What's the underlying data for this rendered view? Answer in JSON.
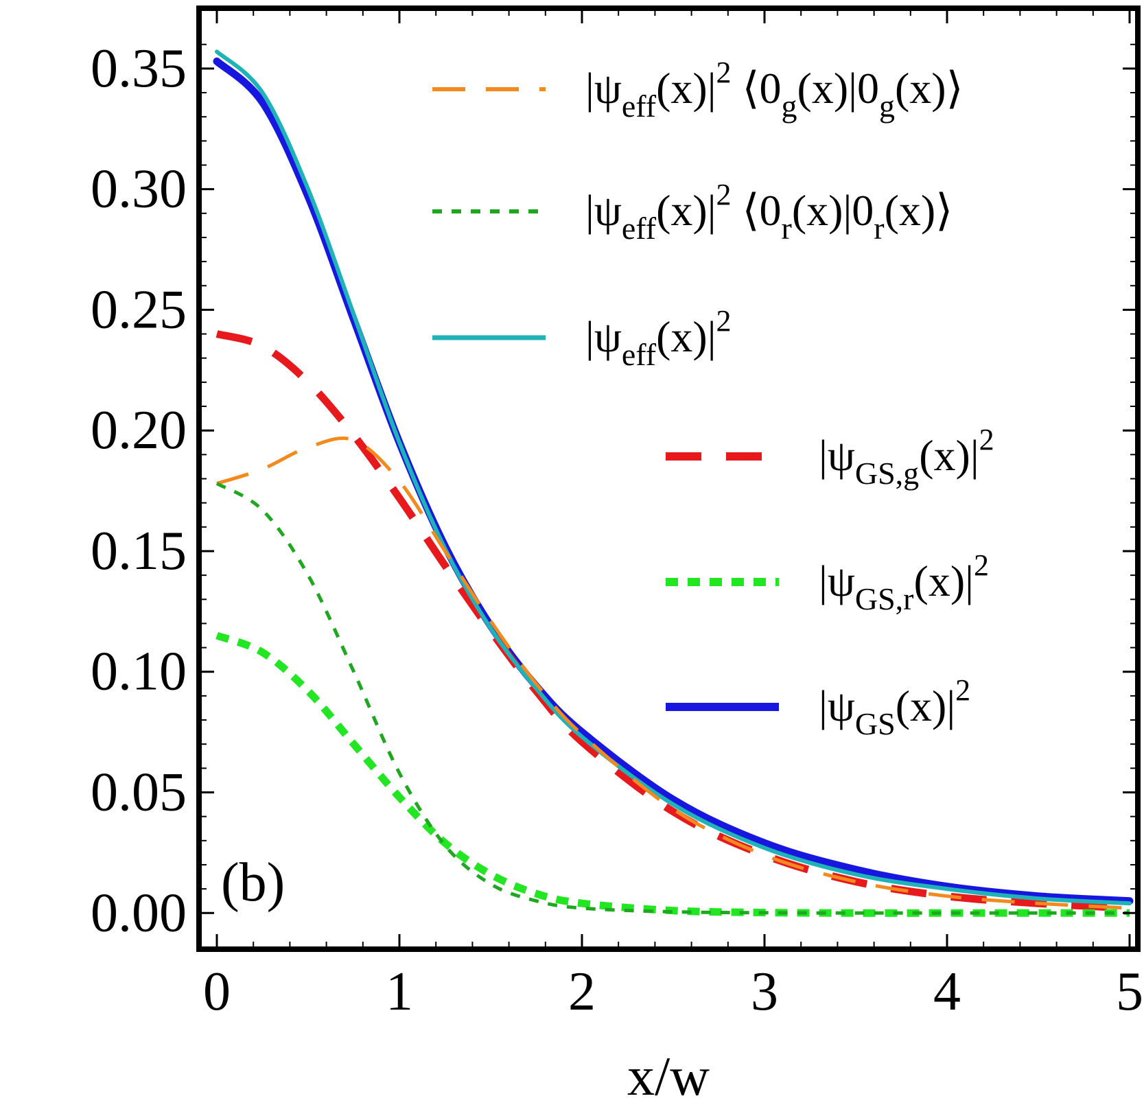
{
  "chart_data": {
    "type": "line",
    "panel_label": "(b)",
    "xlabel": "x/w",
    "ylabel": "",
    "xlim": [
      0,
      5
    ],
    "ylim": [
      -0.015,
      0.375
    ],
    "x_ticks": [
      0,
      1,
      2,
      3,
      4,
      5
    ],
    "x_tick_labels": [
      "0",
      "1",
      "2",
      "3",
      "4",
      "5"
    ],
    "y_ticks": [
      0,
      0.05,
      0.1,
      0.15,
      0.2,
      0.25,
      0.3,
      0.35
    ],
    "y_tick_labels": [
      "0.00",
      "0.05",
      "0.10",
      "0.15",
      "0.20",
      "0.25",
      "0.30",
      "0.35"
    ],
    "x": [
      0,
      0.25,
      0.5,
      0.75,
      1.0,
      1.25,
      1.5,
      1.75,
      2.0,
      2.5,
      3.0,
      3.5,
      4.0,
      4.5,
      5.0
    ],
    "series": [
      {
        "name": "|ψeff(x)|² ⟨0g(x)|0g(x)⟩",
        "legend": {
          "main": "|ψ",
          "sub": "eff",
          "mid": "(x)|",
          "sup": "2",
          "tail": " ⟨0",
          "sub2": "g",
          "mid2": "(x)|0",
          "sub3": "g",
          "end": "(x)⟩"
        },
        "color": "#f28a1e",
        "style": "dashed-thin",
        "values": [
          0.178,
          0.184,
          0.193,
          0.196,
          0.179,
          0.15,
          0.121,
          0.095,
          0.074,
          0.043,
          0.024,
          0.013,
          0.007,
          0.004,
          0.002
        ]
      },
      {
        "name": "|ψeff(x)|² ⟨0r(x)|0r(x)⟩",
        "legend": {
          "main": "|ψ",
          "sub": "eff",
          "mid": "(x)|",
          "sup": "2",
          "tail": " ⟨0",
          "sub2": "r",
          "mid2": "(x)|0",
          "sub3": "r",
          "end": "(x)⟩"
        },
        "color": "#1fa81f",
        "style": "dotted-thin",
        "values": [
          0.178,
          0.167,
          0.14,
          0.1,
          0.058,
          0.028,
          0.012,
          0.005,
          0.002,
          0.0005,
          0.0001,
          0.0,
          0.0,
          0.0,
          0.0
        ]
      },
      {
        "name": "|ψeff(x)|²",
        "legend": {
          "main": "|ψ",
          "sub": "eff",
          "mid": "(x)|",
          "sup": "2"
        },
        "color": "#1fb3b8",
        "style": "solid-thin",
        "values": [
          0.357,
          0.34,
          0.3,
          0.248,
          0.195,
          0.151,
          0.118,
          0.093,
          0.073,
          0.045,
          0.027,
          0.016,
          0.01,
          0.006,
          0.004
        ]
      },
      {
        "name": "|ψGS,g(x)|²",
        "legend": {
          "main": "|ψ",
          "sub": "GS,g",
          "mid": "(x)|",
          "sup": "2"
        },
        "color": "#e8191c",
        "style": "dashed-thick",
        "values": [
          0.24,
          0.235,
          0.22,
          0.198,
          0.172,
          0.144,
          0.117,
          0.092,
          0.071,
          0.042,
          0.024,
          0.013,
          0.007,
          0.004,
          0.002
        ]
      },
      {
        "name": "|ψGS,r(x)|²",
        "legend": {
          "main": "|ψ",
          "sub": "GS,r",
          "mid": "(x)|",
          "sup": "2"
        },
        "color": "#22e622",
        "style": "dotted-thick",
        "values": [
          0.115,
          0.108,
          0.092,
          0.07,
          0.048,
          0.029,
          0.016,
          0.008,
          0.004,
          0.001,
          0.0002,
          0.0,
          0.0,
          0.0,
          0.0
        ]
      },
      {
        "name": "|ψGS(x)|²",
        "legend": {
          "main": "|ψ",
          "sub": "GS",
          "mid": "(x)|",
          "sup": "2"
        },
        "color": "#1717e0",
        "style": "solid-thick",
        "values": [
          0.353,
          0.336,
          0.297,
          0.246,
          0.195,
          0.152,
          0.119,
          0.094,
          0.075,
          0.047,
          0.029,
          0.018,
          0.011,
          0.007,
          0.005
        ]
      }
    ]
  }
}
